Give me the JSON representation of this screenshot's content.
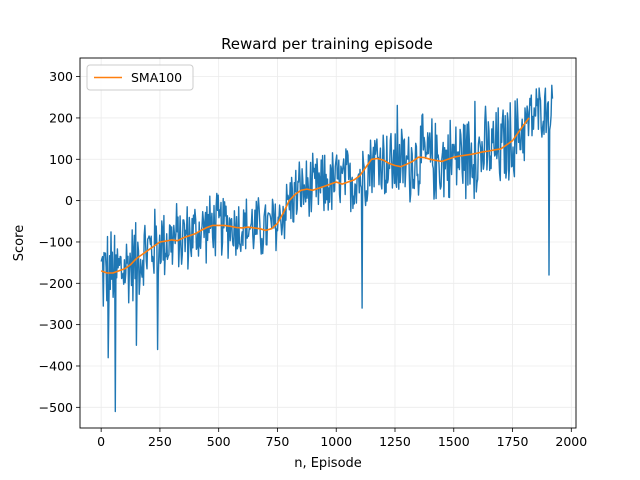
{
  "chart_data": {
    "type": "line",
    "title": "Reward per training episode",
    "xlabel": "n, Episode",
    "ylabel": "Score",
    "xlim": [
      -90,
      2020
    ],
    "ylim": [
      -550,
      345
    ],
    "xticks": [
      0,
      250,
      500,
      750,
      1000,
      1250,
      1500,
      1750,
      2000
    ],
    "yticks": [
      300,
      200,
      100,
      0,
      -100,
      -200,
      -300,
      -400,
      -500
    ],
    "xtick_labels": [
      "0",
      "250",
      "500",
      "750",
      "1000",
      "1250",
      "1500",
      "1750",
      "2000"
    ],
    "ytick_labels": [
      "300",
      "200",
      "100",
      "0",
      "−100",
      "−200",
      "−300",
      "−400",
      "−500"
    ],
    "grid": true,
    "legend_position": "upper-left",
    "series": [
      {
        "name": "",
        "color": "#1f77b4",
        "x_range": [
          0,
          1920
        ],
        "trend": [
          [
            0,
            -175
          ],
          [
            50,
            -175
          ],
          [
            100,
            -165
          ],
          [
            150,
            -140
          ],
          [
            200,
            -120
          ],
          [
            250,
            -100
          ],
          [
            300,
            -95
          ],
          [
            350,
            -90
          ],
          [
            400,
            -80
          ],
          [
            450,
            -65
          ],
          [
            500,
            -60
          ],
          [
            550,
            -60
          ],
          [
            600,
            -65
          ],
          [
            650,
            -65
          ],
          [
            700,
            -70
          ],
          [
            750,
            -55
          ],
          [
            800,
            0
          ],
          [
            850,
            25
          ],
          [
            900,
            25
          ],
          [
            950,
            35
          ],
          [
            1000,
            45
          ],
          [
            1050,
            45
          ],
          [
            1100,
            60
          ],
          [
            1150,
            100
          ],
          [
            1200,
            100
          ],
          [
            1250,
            85
          ],
          [
            1300,
            85
          ],
          [
            1350,
            105
          ],
          [
            1400,
            100
          ],
          [
            1450,
            95
          ],
          [
            1500,
            105
          ],
          [
            1550,
            110
          ],
          [
            1600,
            115
          ],
          [
            1650,
            120
          ],
          [
            1700,
            125
          ],
          [
            1750,
            145
          ],
          [
            1800,
            180
          ],
          [
            1850,
            210
          ],
          [
            1920,
            230
          ]
        ],
        "spread": [
          [
            0,
            130
          ],
          [
            200,
            110
          ],
          [
            500,
            90
          ],
          [
            750,
            90
          ],
          [
            1000,
            95
          ],
          [
            1250,
            110
          ],
          [
            1500,
            120
          ],
          [
            1750,
            120
          ],
          [
            1920,
            60
          ]
        ],
        "spikes": [
          [
            60,
            -510
          ],
          [
            40,
            -460
          ],
          [
            80,
            -420
          ],
          [
            30,
            -380
          ],
          [
            150,
            -350
          ],
          [
            240,
            -360
          ],
          [
            590,
            -230
          ],
          [
            880,
            -290
          ],
          [
            1110,
            -260
          ],
          [
            1180,
            -250
          ],
          [
            1400,
            -170
          ],
          [
            1460,
            -130
          ],
          [
            1670,
            -150
          ],
          [
            1750,
            -180
          ],
          [
            1905,
            -180
          ],
          [
            1630,
            300
          ],
          [
            1340,
            280
          ],
          [
            1840,
            310
          ],
          [
            1590,
            240
          ],
          [
            1880,
            260
          ],
          [
            1260,
            230
          ]
        ]
      },
      {
        "name": "SMA100",
        "color": "#ff7f0e",
        "x_range": [
          0,
          1820
        ],
        "points": [
          [
            0,
            -170
          ],
          [
            25,
            -175
          ],
          [
            50,
            -175
          ],
          [
            75,
            -170
          ],
          [
            100,
            -165
          ],
          [
            125,
            -155
          ],
          [
            150,
            -140
          ],
          [
            175,
            -130
          ],
          [
            200,
            -120
          ],
          [
            225,
            -110
          ],
          [
            250,
            -100
          ],
          [
            275,
            -98
          ],
          [
            300,
            -95
          ],
          [
            325,
            -97
          ],
          [
            350,
            -90
          ],
          [
            375,
            -85
          ],
          [
            400,
            -80
          ],
          [
            425,
            -72
          ],
          [
            450,
            -65
          ],
          [
            475,
            -60
          ],
          [
            500,
            -60
          ],
          [
            525,
            -60
          ],
          [
            550,
            -62
          ],
          [
            575,
            -65
          ],
          [
            600,
            -66
          ],
          [
            625,
            -64
          ],
          [
            650,
            -66
          ],
          [
            675,
            -68
          ],
          [
            700,
            -72
          ],
          [
            725,
            -68
          ],
          [
            750,
            -55
          ],
          [
            775,
            -30
          ],
          [
            800,
            0
          ],
          [
            825,
            15
          ],
          [
            850,
            25
          ],
          [
            875,
            28
          ],
          [
            900,
            25
          ],
          [
            925,
            30
          ],
          [
            950,
            35
          ],
          [
            975,
            40
          ],
          [
            1000,
            45
          ],
          [
            1025,
            40
          ],
          [
            1050,
            45
          ],
          [
            1075,
            50
          ],
          [
            1100,
            60
          ],
          [
            1125,
            80
          ],
          [
            1150,
            100
          ],
          [
            1175,
            102
          ],
          [
            1200,
            98
          ],
          [
            1225,
            90
          ],
          [
            1250,
            85
          ],
          [
            1275,
            82
          ],
          [
            1300,
            88
          ],
          [
            1325,
            95
          ],
          [
            1350,
            105
          ],
          [
            1375,
            104
          ],
          [
            1400,
            100
          ],
          [
            1425,
            97
          ],
          [
            1450,
            95
          ],
          [
            1475,
            100
          ],
          [
            1500,
            105
          ],
          [
            1525,
            108
          ],
          [
            1550,
            110
          ],
          [
            1575,
            112
          ],
          [
            1600,
            115
          ],
          [
            1625,
            118
          ],
          [
            1650,
            120
          ],
          [
            1675,
            123
          ],
          [
            1700,
            125
          ],
          [
            1725,
            135
          ],
          [
            1750,
            145
          ],
          [
            1775,
            165
          ],
          [
            1800,
            185
          ],
          [
            1820,
            200
          ]
        ]
      }
    ]
  }
}
